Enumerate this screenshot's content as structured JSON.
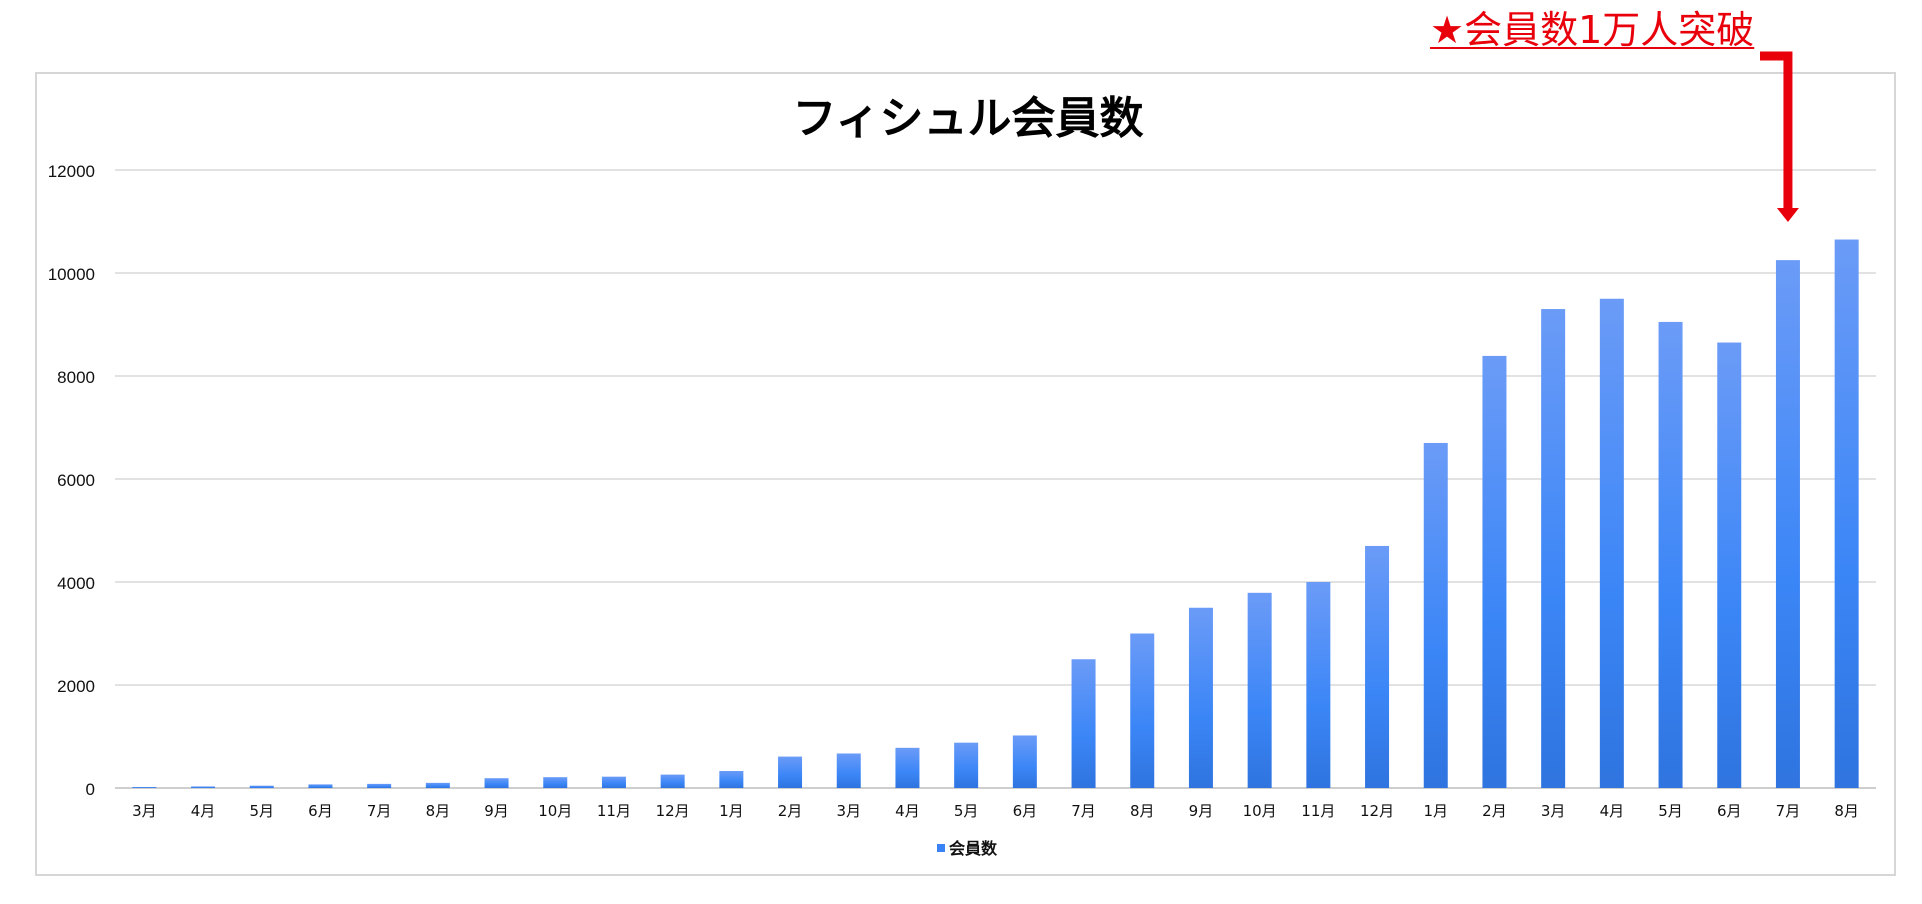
{
  "annotation": {
    "text": "★会員数1万人突破",
    "color": "#e8000b"
  },
  "legend": {
    "marker_color": "#3b82f6"
  },
  "chart_data": {
    "type": "bar",
    "title": "フィシュル会員数",
    "xlabel": "",
    "ylabel": "",
    "ylim": [
      0,
      12000
    ],
    "yticks": [
      0,
      2000,
      4000,
      6000,
      8000,
      10000,
      12000
    ],
    "grid": true,
    "legend_position": "bottom",
    "categories": [
      "3月",
      "4月",
      "5月",
      "6月",
      "7月",
      "8月",
      "9月",
      "10月",
      "11月",
      "12月",
      "1月",
      "2月",
      "3月",
      "4月",
      "5月",
      "6月",
      "7月",
      "8月",
      "9月",
      "10月",
      "11月",
      "12月",
      "1月",
      "2月",
      "3月",
      "4月",
      "5月",
      "6月",
      "7月",
      "8月"
    ],
    "series": [
      {
        "name": "会員数",
        "color": "#3b82f6",
        "values": [
          20,
          30,
          45,
          70,
          80,
          100,
          190,
          210,
          220,
          260,
          330,
          610,
          670,
          780,
          880,
          1020,
          2500,
          3000,
          3500,
          3790,
          4000,
          4700,
          6700,
          8390,
          9300,
          9500,
          9050,
          8650,
          10250,
          10650
        ]
      }
    ],
    "highlight": {
      "category_index": 28,
      "label": "★会員数1万人突破"
    }
  }
}
